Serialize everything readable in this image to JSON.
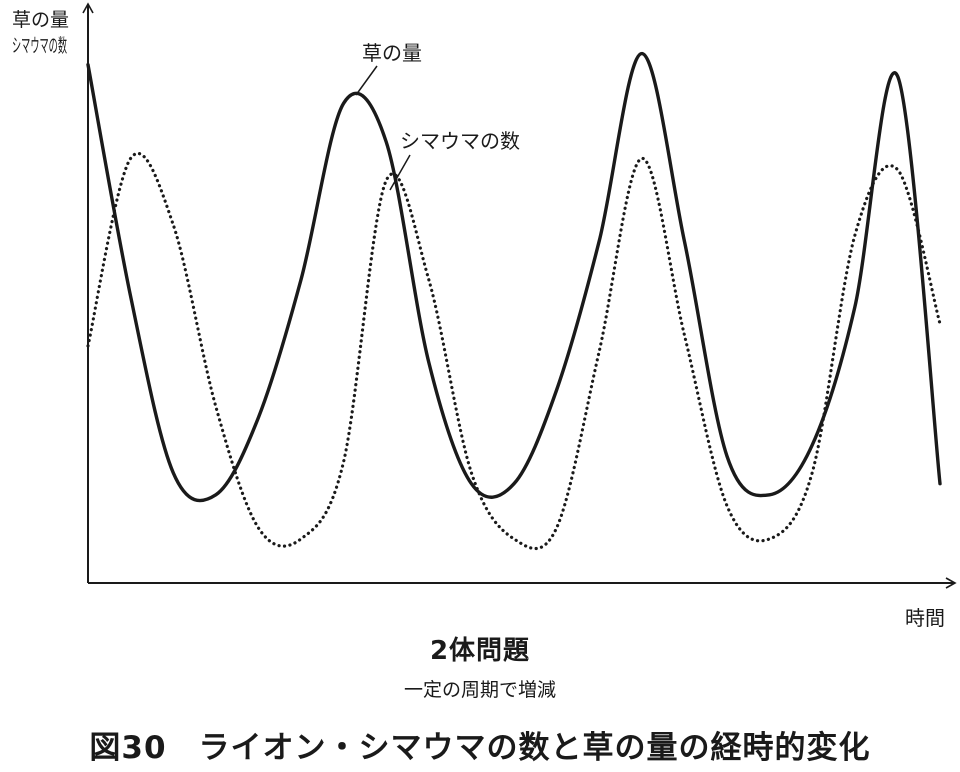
{
  "chart_data": {
    "type": "line",
    "x": [
      0,
      0.5,
      1.0,
      1.5,
      2.0,
      2.5,
      3.0,
      3.5,
      4.0,
      4.5,
      5.0,
      5.5,
      6.0,
      6.5,
      7.0,
      7.5,
      8.0,
      8.5,
      9.0,
      9.5,
      10.0
    ],
    "series": [
      {
        "name": "草の量",
        "values": [
          0.94,
          0.52,
          0.2,
          0.16,
          0.3,
          0.55,
          0.87,
          0.8,
          0.4,
          0.18,
          0.18,
          0.35,
          0.62,
          0.96,
          0.62,
          0.23,
          0.16,
          0.25,
          0.5,
          0.92,
          0.18
        ],
        "style": "solid"
      },
      {
        "name": "シマウマの数",
        "values": [
          0.43,
          0.77,
          0.65,
          0.32,
          0.1,
          0.08,
          0.22,
          0.73,
          0.55,
          0.2,
          0.08,
          0.1,
          0.42,
          0.77,
          0.45,
          0.14,
          0.08,
          0.2,
          0.63,
          0.75,
          0.47
        ],
        "style": "dotted"
      }
    ],
    "ylabel_lines": [
      "草の",
      "量",
      "シマウマの数"
    ],
    "xlabel": "時間",
    "xlim": [
      0,
      10
    ],
    "ylim": [
      0,
      1.05
    ],
    "grid": false,
    "legend": "inline annotations"
  },
  "captions": {
    "subtitle": "2体問題",
    "subcaption": "一定の周期で増減",
    "figure": "図30　ライオン・シマウマの数と草の量の経時的変化"
  },
  "colors": {
    "ink": "#1a1a1a",
    "background": "#ffffff"
  }
}
